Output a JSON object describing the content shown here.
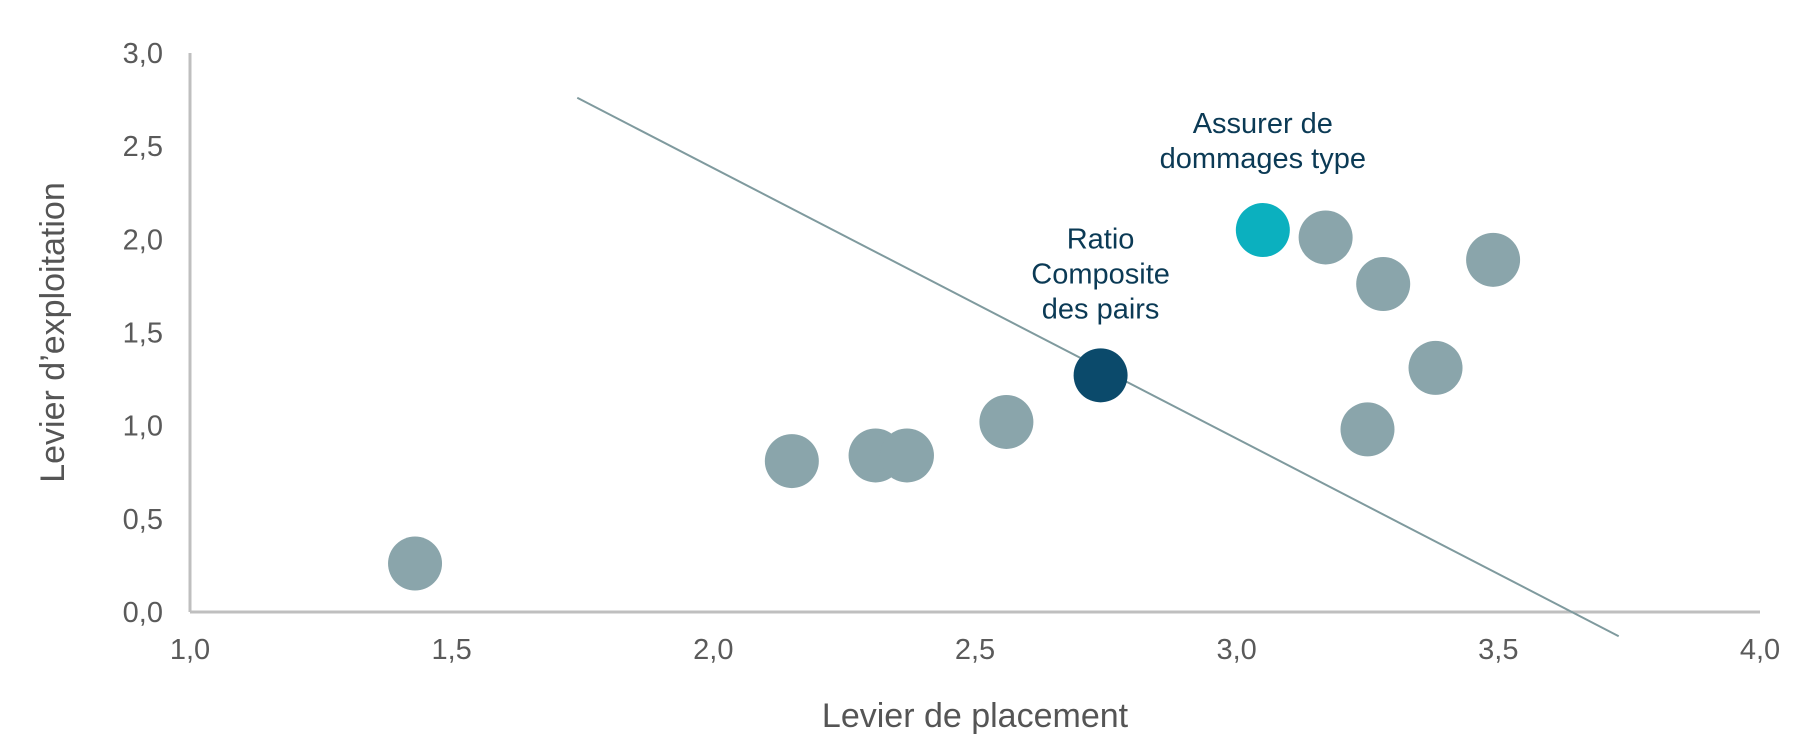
{
  "chart_data": {
    "type": "scatter",
    "xlabel": "Levier de placement",
    "ylabel": "Levier d’exploitation",
    "xlim": [
      1.0,
      4.0
    ],
    "ylim": [
      0.0,
      3.0
    ],
    "x_ticks": [
      "1,0",
      "1,5",
      "2,0",
      "2,5",
      "3,0",
      "3,5",
      "4,0"
    ],
    "y_ticks": [
      "0,0",
      "0,5",
      "1,0",
      "1,5",
      "2,0",
      "2,5",
      "3,0"
    ],
    "grid": false,
    "legend": "none",
    "points": [
      {
        "x": 1.43,
        "y": 0.26,
        "color": "#8aa5ab"
      },
      {
        "x": 2.15,
        "y": 0.81,
        "color": "#8aa5ab"
      },
      {
        "x": 2.31,
        "y": 0.84,
        "color": "#8aa5ab"
      },
      {
        "x": 2.37,
        "y": 0.84,
        "color": "#8aa5ab"
      },
      {
        "x": 2.56,
        "y": 1.02,
        "color": "#8aa5ab"
      },
      {
        "x": 2.74,
        "y": 1.27,
        "color": "#0b4a6b"
      },
      {
        "x": 3.05,
        "y": 2.05,
        "color": "#0bb0bf"
      },
      {
        "x": 3.17,
        "y": 2.01,
        "color": "#8aa5ab"
      },
      {
        "x": 3.28,
        "y": 1.76,
        "color": "#8aa5ab"
      },
      {
        "x": 3.25,
        "y": 0.98,
        "color": "#8aa5ab"
      },
      {
        "x": 3.38,
        "y": 1.31,
        "color": "#8aa5ab"
      },
      {
        "x": 3.49,
        "y": 1.89,
        "color": "#8aa5ab"
      }
    ],
    "reference_line": {
      "x1": 1.74,
      "y1": 2.76,
      "x2": 3.73,
      "y2": -0.13,
      "color": "#7f9a9e"
    },
    "annotations": [
      {
        "lines": [
          "Ratio",
          "Composite",
          "des pairs"
        ],
        "x": 2.74,
        "y": 1.95
      },
      {
        "lines": [
          "Assurer de",
          "dommages type"
        ],
        "x": 3.05,
        "y": 2.57
      }
    ]
  },
  "colors": {
    "axis": "#bfbfbf",
    "peer_point": "#8aa5ab",
    "composite_point": "#0b4a6b",
    "typical_insurer_point": "#0bb0bf",
    "annotation_text": "#0b3a55"
  }
}
